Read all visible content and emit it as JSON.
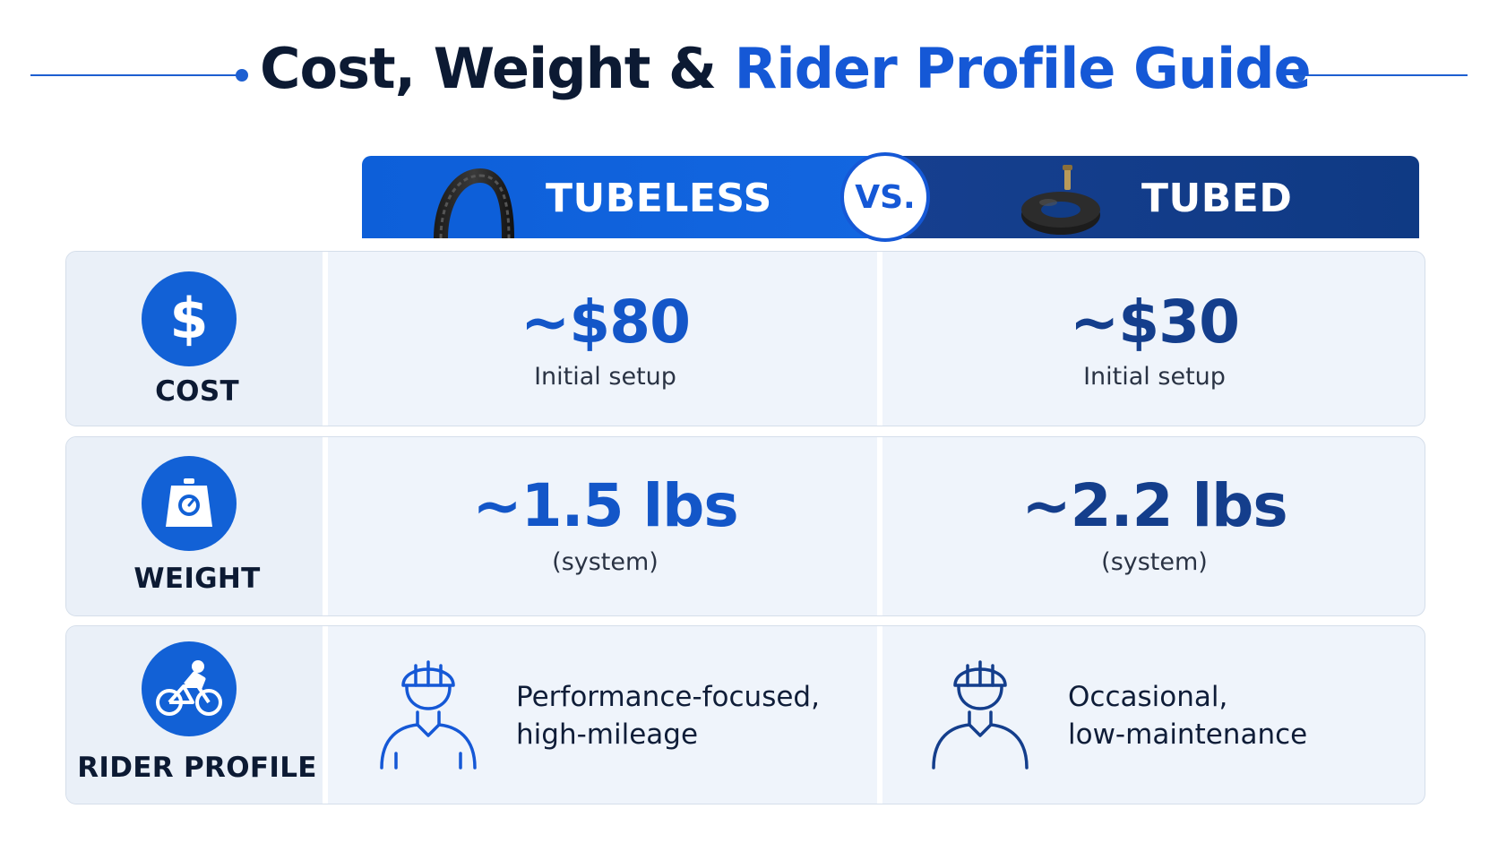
{
  "title": {
    "part1": "Cost, Weight & ",
    "part2": "Rider Profile Guide"
  },
  "header": {
    "col1": "TUBELESS",
    "vs": "VS.",
    "col2": "TUBED"
  },
  "rows": {
    "cost": {
      "label": "COST",
      "tubeless_value": "~$80",
      "tubeless_sub": "Initial setup",
      "tubed_value": "~$30",
      "tubed_sub": "Initial setup"
    },
    "weight": {
      "label": "WEIGHT",
      "tubeless_value": "~1.5 lbs",
      "tubeless_sub": "(system)",
      "tubed_value": "~2.2 lbs",
      "tubed_sub": "(system)"
    },
    "rider": {
      "label": "RIDER PROFILE",
      "tubeless_line1": "Performance-focused,",
      "tubeless_line2": "high-mileage",
      "tubed_line1": "Occasional,",
      "tubed_line2": "low-maintenance"
    }
  },
  "icons": {
    "cost": "dollar-icon",
    "weight": "scale-icon",
    "rider": "cyclist-icon",
    "tubeless": "tire-icon",
    "tubed": "inner-tube-icon",
    "rider_figures": "helmet-person-icon"
  },
  "colors": {
    "accent_blue": "#1558d6",
    "dark_blue": "#143e8c",
    "title_dark": "#0c1a33"
  }
}
